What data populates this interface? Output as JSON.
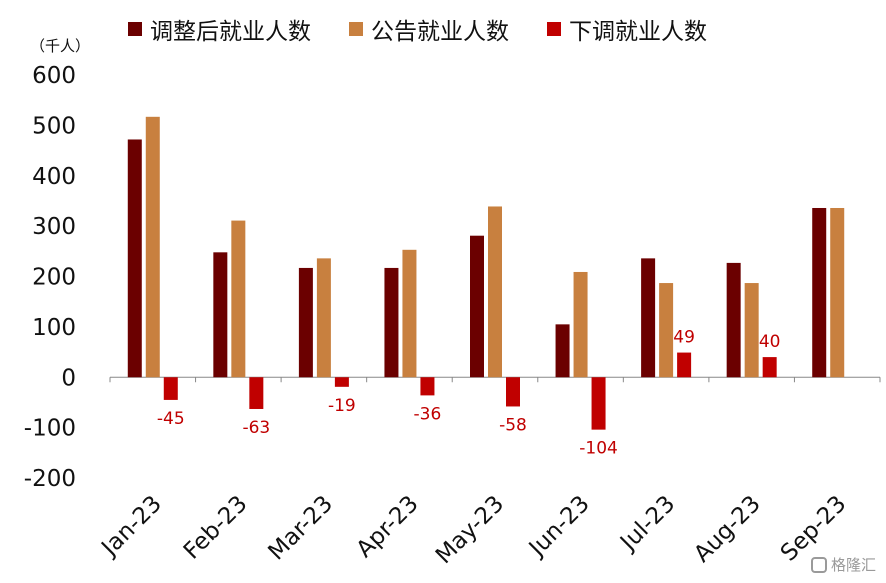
{
  "unit_label": "（千人）",
  "watermark": "格隆汇",
  "colors": {
    "adjusted": "#6b0000",
    "announced": "#c8803f",
    "revision": "#c00000"
  },
  "chart_data": {
    "type": "bar",
    "categories": [
      "Jan-23",
      "Feb-23",
      "Mar-23",
      "Apr-23",
      "May-23",
      "Jun-23",
      "Jul-23",
      "Aug-23",
      "Sep-23"
    ],
    "series": [
      {
        "name": "调整后就业人数",
        "values": [
          472,
          248,
          217,
          217,
          281,
          105,
          236,
          227,
          336
        ]
      },
      {
        "name": "公告就业人数",
        "values": [
          517,
          311,
          236,
          253,
          339,
          209,
          187,
          187,
          336
        ]
      },
      {
        "name": "下调就业人数",
        "values": [
          -45,
          -63,
          -19,
          -36,
          -58,
          -104,
          49,
          40,
          null
        ]
      }
    ],
    "data_labels": [
      "-45",
      "-63",
      "-19",
      "-36",
      "-58",
      "-104",
      "49",
      "40"
    ],
    "ylim": [
      -200,
      600
    ],
    "yticks": [
      "-200",
      "-100",
      "0",
      "100",
      "200",
      "300",
      "400",
      "500",
      "600"
    ],
    "legend_position": "top",
    "grid": false
  }
}
